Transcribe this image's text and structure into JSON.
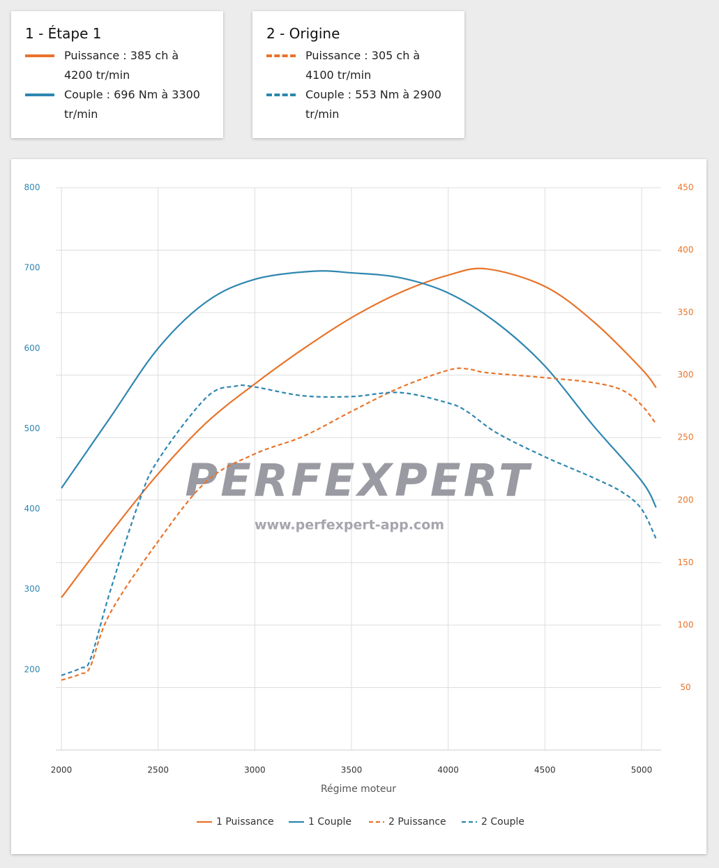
{
  "legend_cards": [
    {
      "title": "1 - Étape 1",
      "items": [
        {
          "text": "Puissance : 385 ch à 4200 tr/min",
          "color": "#e8732a",
          "style": "solid"
        },
        {
          "text": "Couple : 696 Nm à 3300 tr/min",
          "color": "#2e86b0",
          "style": "solid"
        }
      ]
    },
    {
      "title": "2 - Origine",
      "items": [
        {
          "text": "Puissance : 305 ch à 4100 tr/min",
          "color": "#e8732a",
          "style": "dashed"
        },
        {
          "text": "Couple : 553 Nm à 2900 tr/min",
          "color": "#2e86b0",
          "style": "dashed"
        }
      ]
    }
  ],
  "chart_data": {
    "type": "line",
    "x_label": "Régime moteur",
    "watermark": "PERFEXPERT",
    "watermark_url": "www.perfexpert-app.com",
    "xlim": [
      1971,
      5101
    ],
    "xticks": [
      2000,
      2500,
      3000,
      3500,
      4000,
      4500,
      5000
    ],
    "ylim": [
      100,
      800
    ],
    "yticks": [
      200,
      300,
      400,
      500,
      600,
      700,
      800
    ],
    "y2lim": [
      0,
      450
    ],
    "y2ticks": [
      50,
      100,
      150,
      200,
      250,
      300,
      350,
      400,
      450
    ],
    "grid": true,
    "legend": "bottom",
    "series": [
      {
        "name": "1 Puissance",
        "color": "#e8732a",
        "style": "solid",
        "axis": "y2",
        "x": [
          2000,
          2250,
          2500,
          2750,
          3000,
          3250,
          3500,
          3750,
          4000,
          4200,
          4500,
          4750,
          5000,
          5075
        ],
        "values": [
          122,
          173,
          221,
          262,
          293,
          321,
          346,
          366,
          380,
          385,
          371,
          343,
          305,
          290
        ]
      },
      {
        "name": "1 Couple",
        "color": "#2e86b0",
        "style": "solid",
        "axis": "y",
        "x": [
          2000,
          2250,
          2500,
          2750,
          3000,
          3300,
          3500,
          3750,
          4000,
          4250,
          4500,
          4750,
          5000,
          5075
        ],
        "values": [
          426,
          513,
          600,
          658,
          686,
          696,
          694,
          688,
          669,
          632,
          578,
          504,
          435,
          402
        ]
      },
      {
        "name": "2 Puissance",
        "color": "#e8732a",
        "style": "dashed",
        "axis": "y2",
        "x": [
          2000,
          2100,
          2150,
          2250,
          2500,
          2750,
          3000,
          3250,
          3500,
          3750,
          4000,
          4100,
          4200,
          4500,
          4750,
          4900,
          5000,
          5075
        ],
        "values": [
          56,
          61,
          67,
          109,
          167,
          215,
          237,
          251,
          271,
          290,
          304,
          305,
          302,
          298,
          294,
          288,
          276,
          261
        ]
      },
      {
        "name": "2 Couple",
        "color": "#2e86b0",
        "style": "dashed",
        "axis": "y",
        "x": [
          2000,
          2100,
          2150,
          2250,
          2400,
          2500,
          2750,
          2900,
          3000,
          3250,
          3500,
          3750,
          4000,
          4100,
          4250,
          4500,
          4750,
          4900,
          5000,
          5075
        ],
        "values": [
          193,
          202,
          213,
          296,
          408,
          461,
          539,
          553,
          552,
          541,
          540,
          545,
          532,
          521,
          495,
          465,
          439,
          421,
          400,
          363
        ]
      }
    ]
  }
}
